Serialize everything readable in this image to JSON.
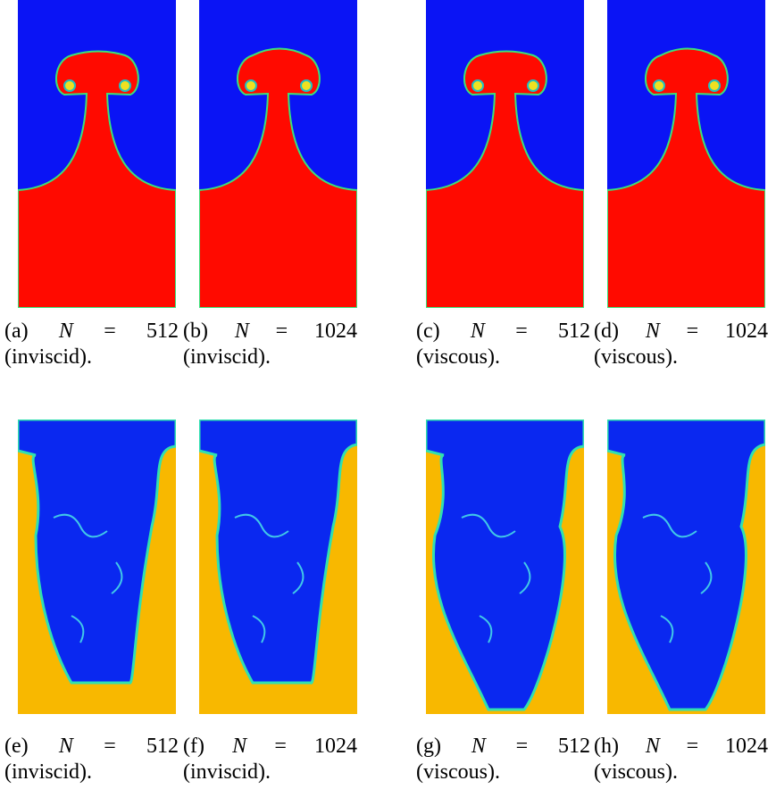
{
  "panels": [
    {
      "label": "(a)",
      "variable": "N",
      "equation": "= 512",
      "note": "(inviscid)."
    },
    {
      "label": "(b)",
      "variable": "N",
      "equation": "= 1024",
      "note": "(inviscid)."
    },
    {
      "label": "(c)",
      "variable": "N",
      "equation": "= 512",
      "note": "(viscous)."
    },
    {
      "label": "(d)",
      "variable": "N",
      "equation": "= 1024",
      "note": "(viscous)."
    },
    {
      "label": "(e)",
      "variable": "N",
      "equation": "= 512",
      "note": "(inviscid)."
    },
    {
      "label": "(f)",
      "variable": "N",
      "equation": "= 1024",
      "note": "(inviscid)."
    },
    {
      "label": "(g)",
      "variable": "N",
      "equation": "= 512",
      "note": "(viscous)."
    },
    {
      "label": "(h)",
      "variable": "N",
      "equation": "= 1024",
      "note": "(viscous)."
    }
  ]
}
